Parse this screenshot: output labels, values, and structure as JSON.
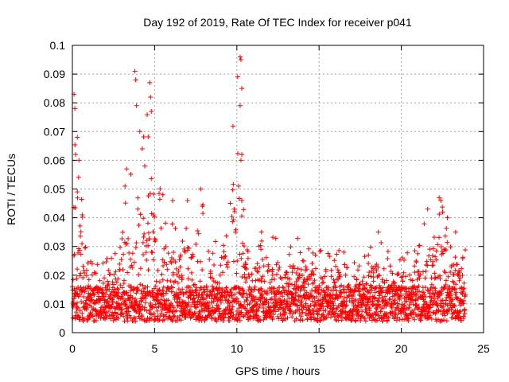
{
  "chart_data": {
    "type": "scatter",
    "title": "Day 192 of 2019, Rate Of TEC Index for receiver p041",
    "xlabel": "GPS time / hours",
    "ylabel": "ROTI / TECUs",
    "xlim": [
      0,
      25
    ],
    "ylim": [
      0,
      0.1
    ],
    "grid": true,
    "marker": "+",
    "color": "#ff0000",
    "x_ticks": [
      "0",
      "5",
      "10",
      "15",
      "20",
      "25"
    ],
    "y_ticks": [
      "0",
      "0.01",
      "0.02",
      "0.03",
      "0.04",
      "0.05",
      "0.06",
      "0.07",
      "0.08",
      "0.09",
      "0.1"
    ],
    "series": [
      {
        "name": "ROTI",
        "envelope": [
          [
            0.0,
            0.028
          ],
          [
            0.2,
            0.084
          ],
          [
            0.4,
            0.068
          ],
          [
            0.6,
            0.048
          ],
          [
            0.8,
            0.03
          ],
          [
            1.0,
            0.025
          ],
          [
            1.5,
            0.028
          ],
          [
            2.0,
            0.026
          ],
          [
            2.5,
            0.027
          ],
          [
            3.0,
            0.035
          ],
          [
            3.2,
            0.057
          ],
          [
            3.5,
            0.05
          ],
          [
            3.8,
            0.091
          ],
          [
            4.0,
            0.075
          ],
          [
            4.3,
            0.07
          ],
          [
            4.7,
            0.087
          ],
          [
            5.0,
            0.055
          ],
          [
            5.5,
            0.048
          ],
          [
            6.0,
            0.038
          ],
          [
            6.5,
            0.037
          ],
          [
            7.0,
            0.046
          ],
          [
            7.5,
            0.036
          ],
          [
            8.0,
            0.05
          ],
          [
            8.5,
            0.033
          ],
          [
            9.0,
            0.034
          ],
          [
            9.5,
            0.045
          ],
          [
            10.0,
            0.096
          ],
          [
            10.5,
            0.038
          ],
          [
            11.0,
            0.036
          ],
          [
            11.5,
            0.035
          ],
          [
            12.0,
            0.034
          ],
          [
            12.5,
            0.033
          ],
          [
            13.0,
            0.03
          ],
          [
            13.5,
            0.034
          ],
          [
            14.0,
            0.031
          ],
          [
            14.5,
            0.03
          ],
          [
            15.0,
            0.029
          ],
          [
            15.5,
            0.03
          ],
          [
            16.0,
            0.029
          ],
          [
            16.5,
            0.028
          ],
          [
            17.0,
            0.027
          ],
          [
            17.5,
            0.024
          ],
          [
            18.0,
            0.029
          ],
          [
            18.5,
            0.035
          ],
          [
            19.0,
            0.03
          ],
          [
            19.5,
            0.028
          ],
          [
            20.0,
            0.03
          ],
          [
            20.5,
            0.031
          ],
          [
            21.0,
            0.033
          ],
          [
            21.5,
            0.043
          ],
          [
            22.0,
            0.041
          ],
          [
            22.3,
            0.047
          ],
          [
            22.5,
            0.045
          ],
          [
            23.0,
            0.037
          ],
          [
            23.5,
            0.035
          ],
          [
            23.9,
            0.03
          ]
        ],
        "peaks": [
          {
            "x": 0.1,
            "y": 0.083
          },
          {
            "x": 0.15,
            "y": 0.078
          },
          {
            "x": 0.3,
            "y": 0.068
          },
          {
            "x": 0.2,
            "y": 0.062
          },
          {
            "x": 0.4,
            "y": 0.06
          },
          {
            "x": 0.3,
            "y": 0.049
          },
          {
            "x": 0.6,
            "y": 0.041
          },
          {
            "x": 3.3,
            "y": 0.057
          },
          {
            "x": 3.2,
            "y": 0.051
          },
          {
            "x": 3.8,
            "y": 0.091
          },
          {
            "x": 3.85,
            "y": 0.088
          },
          {
            "x": 3.9,
            "y": 0.079
          },
          {
            "x": 4.1,
            "y": 0.07
          },
          {
            "x": 4.25,
            "y": 0.064
          },
          {
            "x": 4.4,
            "y": 0.058
          },
          {
            "x": 4.7,
            "y": 0.087
          },
          {
            "x": 4.75,
            "y": 0.082
          },
          {
            "x": 4.8,
            "y": 0.077
          },
          {
            "x": 5.5,
            "y": 0.048
          },
          {
            "x": 6.1,
            "y": 0.046
          },
          {
            "x": 7.0,
            "y": 0.046
          },
          {
            "x": 7.8,
            "y": 0.05
          },
          {
            "x": 7.9,
            "y": 0.044
          },
          {
            "x": 9.6,
            "y": 0.045
          },
          {
            "x": 10.2,
            "y": 0.096
          },
          {
            "x": 10.25,
            "y": 0.095
          },
          {
            "x": 10.3,
            "y": 0.085
          },
          {
            "x": 10.2,
            "y": 0.079
          },
          {
            "x": 10.3,
            "y": 0.062
          },
          {
            "x": 10.25,
            "y": 0.06
          },
          {
            "x": 10.1,
            "y": 0.051
          },
          {
            "x": 10.3,
            "y": 0.046
          },
          {
            "x": 11.5,
            "y": 0.035
          },
          {
            "x": 16.5,
            "y": 0.028
          },
          {
            "x": 18.0,
            "y": 0.027
          },
          {
            "x": 18.6,
            "y": 0.035
          },
          {
            "x": 22.3,
            "y": 0.047
          },
          {
            "x": 22.4,
            "y": 0.046
          },
          {
            "x": 21.6,
            "y": 0.043
          },
          {
            "x": 22.8,
            "y": 0.04
          },
          {
            "x": 23.3,
            "y": 0.035
          }
        ]
      }
    ]
  }
}
